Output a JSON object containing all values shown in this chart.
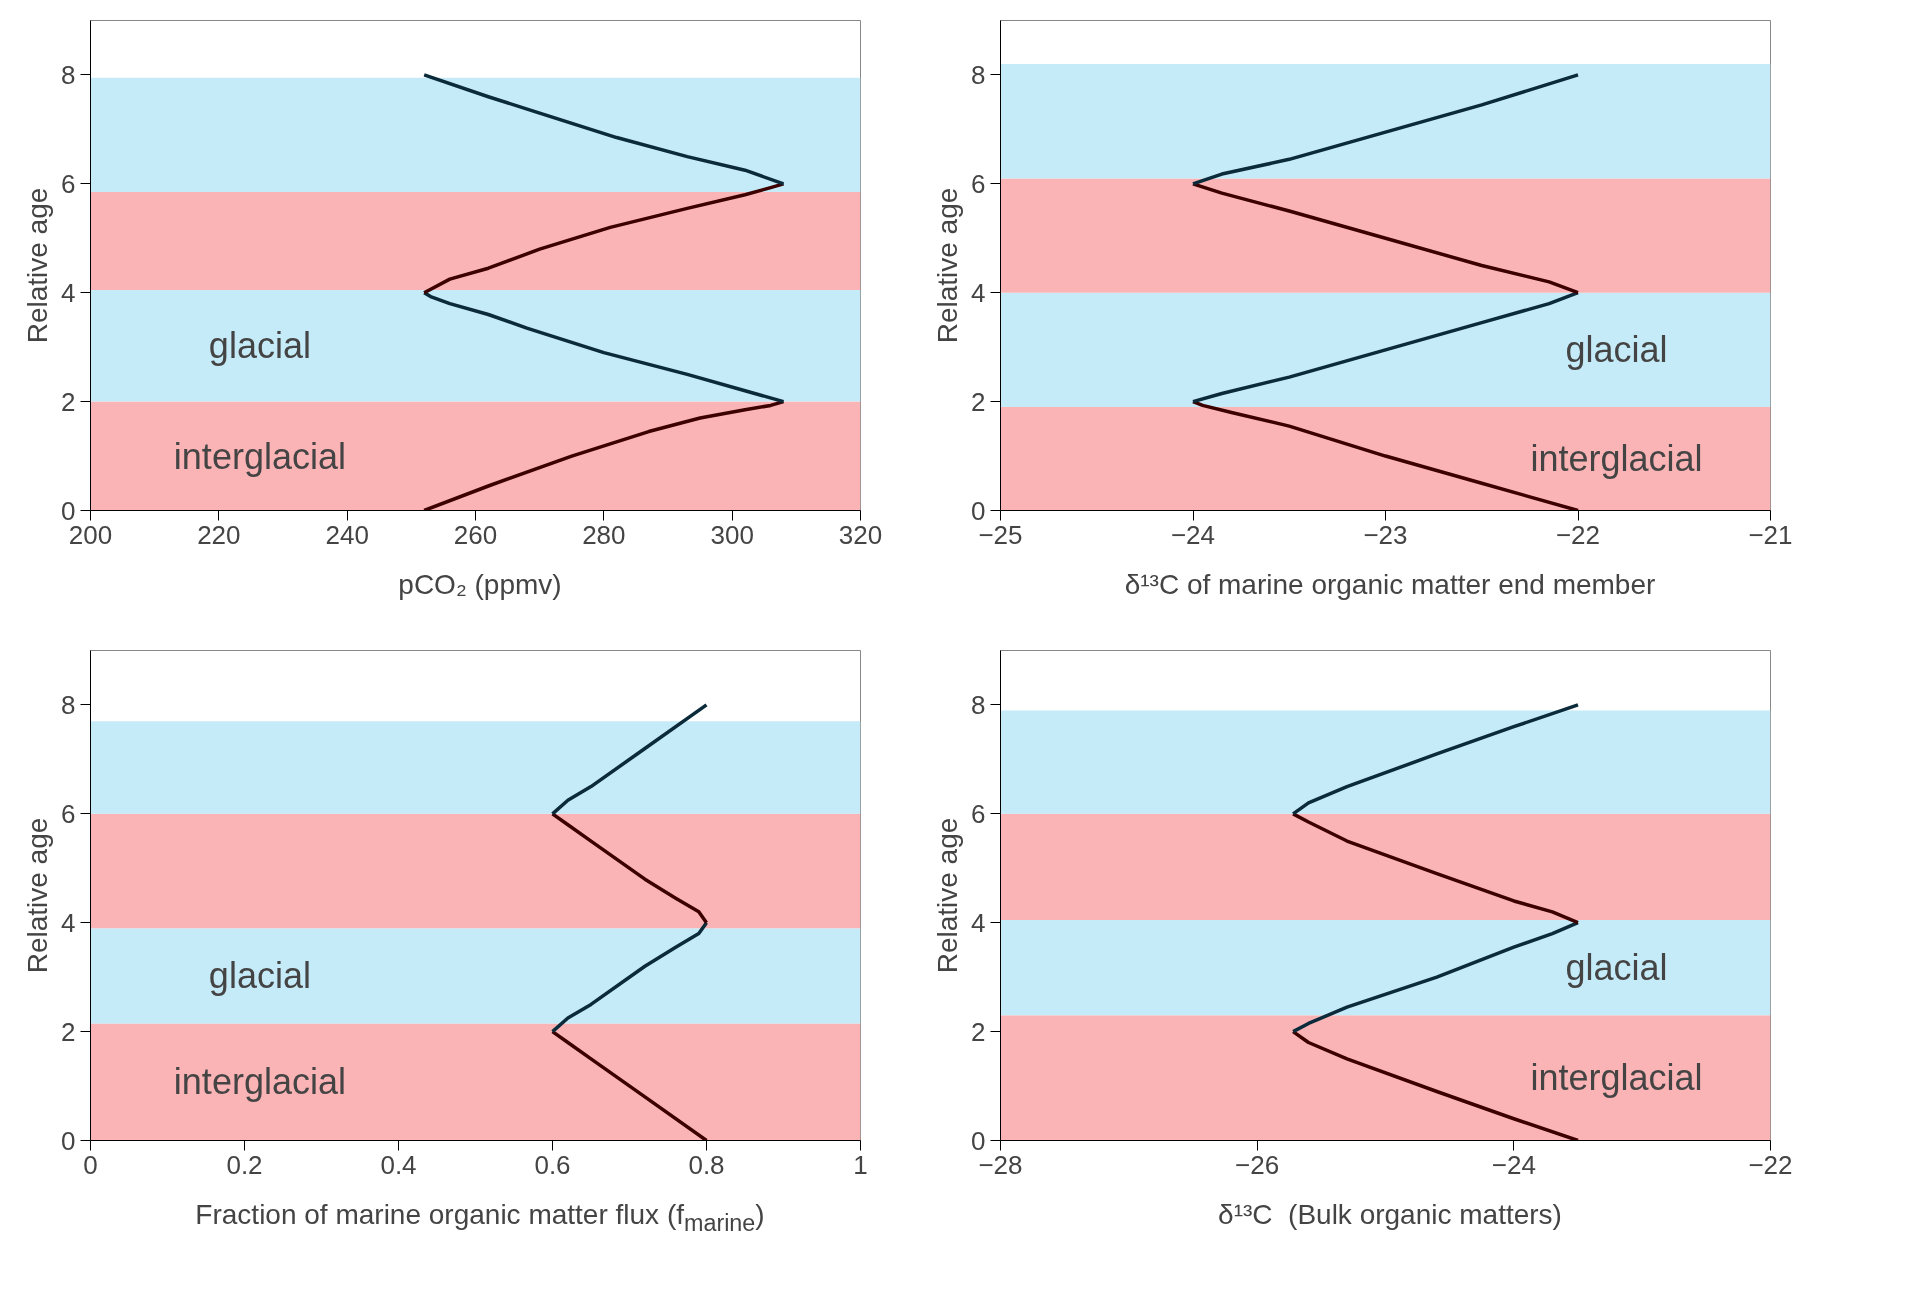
{
  "chart_data": [
    {
      "type": "line",
      "xlabel": "pCO₂ (ppmv)",
      "ylabel": "Relative age",
      "xlim": [
        200,
        320
      ],
      "xticks": [
        200,
        220,
        240,
        260,
        280,
        300,
        320
      ],
      "ylim": [
        0,
        9
      ],
      "yticks": [
        0,
        2,
        4,
        6,
        8
      ],
      "grid": false,
      "marker": "none",
      "line_style": "solid",
      "series": [
        {
          "color": "#3d0000",
          "x": [
            252,
            262,
            275,
            287,
            295,
            302,
            306,
            308
          ],
          "values": [
            0,
            0.45,
            1.0,
            1.45,
            1.7,
            1.85,
            1.93,
            2
          ]
        },
        {
          "color": "#0b2a3a",
          "x": [
            308,
            302,
            293,
            280,
            268,
            262,
            256,
            253,
            252
          ],
          "values": [
            2,
            2.2,
            2.5,
            2.9,
            3.35,
            3.6,
            3.8,
            3.93,
            4
          ]
        },
        {
          "color": "#3d0000",
          "x": [
            252,
            256,
            262,
            270,
            281,
            293,
            302,
            306,
            308
          ],
          "values": [
            4,
            4.25,
            4.45,
            4.8,
            5.2,
            5.55,
            5.8,
            5.93,
            6
          ]
        },
        {
          "color": "#0b2a3a",
          "x": [
            308,
            302,
            293,
            282,
            270,
            262,
            252
          ],
          "values": [
            6,
            6.25,
            6.5,
            6.85,
            7.3,
            7.6,
            8
          ]
        }
      ],
      "bands": [
        {
          "axis": "y",
          "from": 0,
          "to": 2,
          "color": "#fbb4b6",
          "label": "interglacial"
        },
        {
          "axis": "y",
          "from": 2,
          "to": 4.05,
          "color": "#c5eaf8",
          "label": "glacial"
        },
        {
          "axis": "y",
          "from": 4.05,
          "to": 5.85,
          "color": "#fbb4b6"
        },
        {
          "axis": "y",
          "from": 5.85,
          "to": 7.95,
          "color": "#c5eaf8"
        }
      ]
    },
    {
      "type": "line",
      "xlabel": "δ¹³C of marine organic matter end member",
      "ylabel": "Relative age",
      "xlim": [
        -25,
        -21
      ],
      "xticks": [
        -25,
        -24,
        -23,
        -22,
        -21
      ],
      "ylim": [
        0,
        9
      ],
      "yticks": [
        0,
        2,
        4,
        6,
        8
      ],
      "grid": false,
      "marker": "none",
      "line_style": "solid",
      "series": [
        {
          "color": "#3d0000",
          "x": [
            -22,
            -22.5,
            -23,
            -23.5,
            -23.8,
            -23.95,
            -24
          ],
          "values": [
            0,
            0.5,
            1.0,
            1.55,
            1.8,
            1.93,
            2
          ]
        },
        {
          "color": "#0b2a3a",
          "x": [
            -24,
            -23.85,
            -23.5,
            -23,
            -22.5,
            -22.15,
            -22
          ],
          "values": [
            2,
            2.15,
            2.45,
            2.95,
            3.45,
            3.8,
            4
          ]
        },
        {
          "color": "#3d0000",
          "x": [
            -22,
            -22.15,
            -22.5,
            -23,
            -23.5,
            -23.85,
            -24
          ],
          "values": [
            4,
            4.2,
            4.5,
            5.0,
            5.5,
            5.83,
            6
          ]
        },
        {
          "color": "#0b2a3a",
          "x": [
            -24,
            -23.85,
            -23.5,
            -23,
            -22.5,
            -22
          ],
          "values": [
            6,
            6.18,
            6.45,
            6.95,
            7.45,
            8
          ]
        }
      ],
      "bands": [
        {
          "axis": "y",
          "from": 0,
          "to": 1.9,
          "color": "#fbb4b6",
          "label": "interglacial"
        },
        {
          "axis": "y",
          "from": 1.9,
          "to": 4,
          "color": "#c5eaf8",
          "label": "glacial"
        },
        {
          "axis": "y",
          "from": 4,
          "to": 6.1,
          "color": "#fbb4b6"
        },
        {
          "axis": "y",
          "from": 6.1,
          "to": 8.2,
          "color": "#c5eaf8"
        }
      ]
    },
    {
      "type": "line",
      "xlabel": "Fraction of marine organic matter flux (f$_{marine}$)",
      "ylabel": "Relative age",
      "xlim": [
        0,
        1
      ],
      "xticks": [
        0,
        {
          "value": 0.2,
          "label": "0.2"
        },
        {
          "value": 0.4,
          "label": "0.4"
        },
        {
          "value": 0.6,
          "label": "0.6"
        },
        {
          "value": 0.8,
          "label": "0.8"
        },
        1
      ],
      "ylim": [
        0,
        9
      ],
      "yticks": [
        0,
        2,
        4,
        6,
        8
      ],
      "grid": false,
      "marker": "none",
      "line_style": "solid",
      "series": [
        {
          "color": "#3d0000",
          "x": [
            0.8,
            0.72,
            0.65,
            0.62,
            0.6
          ],
          "values": [
            0,
            0.8,
            1.5,
            1.8,
            2
          ]
        },
        {
          "color": "#0b2a3a",
          "x": [
            0.6,
            0.62,
            0.65,
            0.72,
            0.76,
            0.79,
            0.8
          ],
          "values": [
            2,
            2.25,
            2.5,
            3.2,
            3.55,
            3.8,
            4
          ]
        },
        {
          "color": "#3d0000",
          "x": [
            0.8,
            0.79,
            0.76,
            0.72,
            0.65,
            0.62,
            0.6
          ],
          "values": [
            4,
            4.2,
            4.45,
            4.8,
            5.5,
            5.8,
            6
          ]
        },
        {
          "color": "#0b2a3a",
          "x": [
            0.6,
            0.62,
            0.65,
            0.72,
            0.8
          ],
          "values": [
            6,
            6.25,
            6.5,
            7.2,
            8
          ]
        }
      ],
      "bands": [
        {
          "axis": "y",
          "from": 0,
          "to": 2.15,
          "color": "#fbb4b6",
          "label": "interglacial"
        },
        {
          "axis": "y",
          "from": 2.15,
          "to": 3.9,
          "color": "#c5eaf8",
          "label": "glacial"
        },
        {
          "axis": "y",
          "from": 3.9,
          "to": 6,
          "color": "#fbb4b6"
        },
        {
          "axis": "y",
          "from": 6,
          "to": 7.7,
          "color": "#c5eaf8"
        }
      ]
    },
    {
      "type": "line",
      "xlabel": "δ¹³C   (Bulk organic matters)",
      "ylabel": "Relative age",
      "xlim": [
        -28,
        -22
      ],
      "xticks": [
        -28,
        -26,
        -24,
        -22
      ],
      "ylim": [
        0,
        9
      ],
      "yticks": [
        0,
        2,
        4,
        6,
        8
      ],
      "grid": false,
      "marker": "none",
      "line_style": "solid",
      "series": [
        {
          "color": "#3d0000",
          "x": [
            -23.5,
            -24,
            -24.6,
            -25.3,
            -25.6,
            -25.72
          ],
          "values": [
            0,
            0.4,
            0.9,
            1.5,
            1.8,
            2
          ]
        },
        {
          "color": "#0b2a3a",
          "x": [
            -25.72,
            -25.6,
            -25.3,
            -24.6,
            -24,
            -23.7,
            -23.5
          ],
          "values": [
            2,
            2.15,
            2.45,
            3.0,
            3.55,
            3.8,
            4
          ]
        },
        {
          "color": "#3d0000",
          "x": [
            -23.5,
            -23.7,
            -24,
            -24.6,
            -25.3,
            -25.6,
            -25.72
          ],
          "values": [
            4,
            4.2,
            4.4,
            4.9,
            5.5,
            5.85,
            6
          ]
        },
        {
          "color": "#0b2a3a",
          "x": [
            -25.72,
            -25.6,
            -25.3,
            -24.6,
            -24,
            -23.5
          ],
          "values": [
            6,
            6.2,
            6.5,
            7.1,
            7.6,
            8
          ]
        }
      ],
      "bands": [
        {
          "axis": "y",
          "from": 0,
          "to": 2.3,
          "color": "#fbb4b6",
          "label": "interglacial"
        },
        {
          "axis": "y",
          "from": 2.3,
          "to": 4.05,
          "color": "#c5eaf8",
          "label": "glacial"
        },
        {
          "axis": "y",
          "from": 4.05,
          "to": 6,
          "color": "#fbb4b6"
        },
        {
          "axis": "y",
          "from": 6,
          "to": 7.9,
          "color": "#c5eaf8"
        }
      ]
    }
  ]
}
